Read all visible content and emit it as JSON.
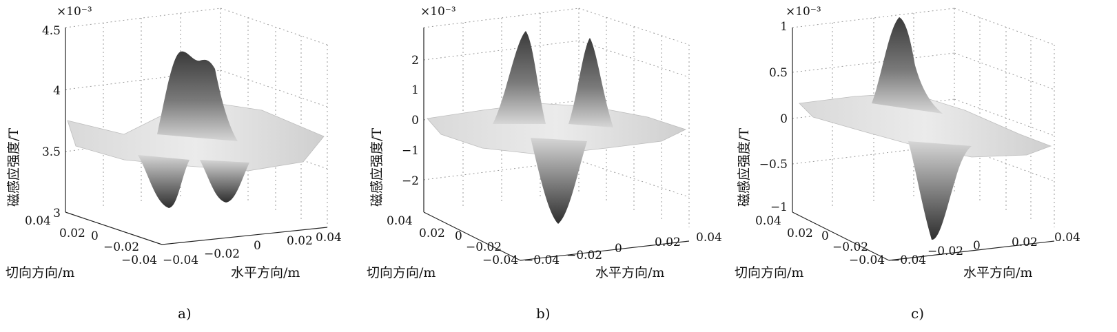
{
  "chart_data": [
    {
      "type": "surface3d",
      "caption": "a)",
      "multiplier_label": "×10⁻³",
      "zlabel": "磁感应强度/T",
      "xlabel": "水平方向/m",
      "ylabel": "切向方向/m",
      "zlim": [
        3.0,
        4.5
      ],
      "zticks": [
        "4.5",
        "4",
        "3.5",
        "3"
      ],
      "xticks": [
        "−0.04",
        "−0.02",
        "0",
        "0.02",
        "0.04"
      ],
      "yticks": [
        "0.04",
        "0.02",
        "0",
        "−0.02",
        "−0.04"
      ],
      "baseline": 3.7,
      "features": [
        {
          "kind": "peak",
          "x": -0.004,
          "y": 0.0,
          "value": 4.35
        },
        {
          "kind": "peak",
          "x": 0.004,
          "y": 0.0,
          "value": 4.3
        },
        {
          "kind": "valley",
          "x": -0.012,
          "y": -0.01,
          "value": 3.05
        },
        {
          "kind": "valley",
          "x": 0.012,
          "y": -0.01,
          "value": 3.1
        }
      ]
    },
    {
      "type": "surface3d",
      "caption": "b)",
      "multiplier_label": "×10⁻³",
      "zlabel": "磁感应强度/T",
      "xlabel": "水平方向/m",
      "ylabel": "切向方向/m",
      "zlim": [
        -3,
        3
      ],
      "zticks": [
        "2",
        "1",
        "0",
        "−1",
        "−2"
      ],
      "xticks": [
        "−0.04",
        "−0.02",
        "0",
        "0.02",
        "0.04"
      ],
      "yticks": [
        "0.04",
        "0.02",
        "0",
        "−0.02",
        "−0.04"
      ],
      "baseline": 0,
      "features": [
        {
          "kind": "peak",
          "x": -0.012,
          "y": 0.01,
          "value": 2.9
        },
        {
          "kind": "peak",
          "x": 0.012,
          "y": 0.01,
          "value": 2.8
        },
        {
          "kind": "valley",
          "x": 0.0,
          "y": -0.01,
          "value": -3.3
        }
      ]
    },
    {
      "type": "surface3d",
      "caption": "c)",
      "multiplier_label": "×10⁻³",
      "zlabel": "磁感应强度/T",
      "xlabel": "水平方向/m",
      "ylabel": "切向方向/m",
      "zlim": [
        -1,
        1
      ],
      "zticks": [
        "1",
        "0.5",
        "0",
        "−0.5",
        "−1"
      ],
      "xticks": [
        "−0.04",
        "−0.02",
        "0",
        "0.02",
        "0.04"
      ],
      "yticks": [
        "0.04",
        "0.02",
        "0",
        "−0.02",
        "−0.04"
      ],
      "baseline": 0,
      "features": [
        {
          "kind": "peak",
          "x": 0.0,
          "y": 0.008,
          "value": 1.0
        },
        {
          "kind": "valley",
          "x": 0.0,
          "y": -0.008,
          "value": -1.1
        }
      ]
    }
  ]
}
